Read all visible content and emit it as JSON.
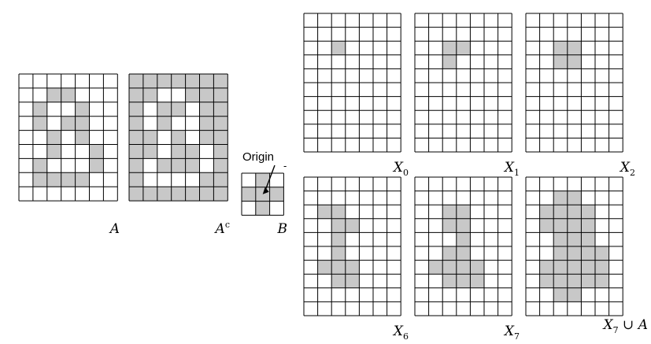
{
  "colors": {
    "fill": "#c8c8c8",
    "line": "#000000",
    "background": "#ffffff"
  },
  "grids": [
    {
      "id": "A",
      "label": {
        "main": "A",
        "sub": "",
        "sup": "",
        "rest": ""
      },
      "rows": [
        "0000000",
        "0011000",
        "0100100",
        "0101100",
        "0010100",
        "0010010",
        "0100010",
        "0111100",
        "0000000"
      ]
    },
    {
      "id": "Ac",
      "label": {
        "main": "A",
        "sub": "",
        "sup": "c",
        "rest": ""
      },
      "rows": [
        "1111111",
        "1100111",
        "1011011",
        "1010011",
        "1101011",
        "1101101",
        "1011101",
        "1000011",
        "1111111"
      ]
    },
    {
      "id": "X0",
      "label": {
        "main": "X",
        "sub": "0",
        "sup": "",
        "rest": ""
      },
      "rows": [
        "0000000",
        "0000000",
        "0010000",
        "0000000",
        "0000000",
        "0000000",
        "0000000",
        "0000000",
        "0000000",
        "0000000"
      ]
    },
    {
      "id": "X1",
      "label": {
        "main": "X",
        "sub": "1",
        "sup": "",
        "rest": ""
      },
      "rows": [
        "0000000",
        "0000000",
        "0011000",
        "0010000",
        "0000000",
        "0000000",
        "0000000",
        "0000000",
        "0000000",
        "0000000"
      ]
    },
    {
      "id": "X2",
      "label": {
        "main": "X",
        "sub": "2",
        "sup": "",
        "rest": ""
      },
      "rows": [
        "0000000",
        "0000000",
        "0011000",
        "0011000",
        "0000000",
        "0000000",
        "0000000",
        "0000000",
        "0000000",
        "0000000"
      ]
    },
    {
      "id": "X6",
      "label": {
        "main": "X",
        "sub": "6",
        "sup": "",
        "rest": ""
      },
      "rows": [
        "0000000",
        "0000000",
        "0110000",
        "0011000",
        "0010000",
        "0010000",
        "0111000",
        "0011000",
        "0000000",
        "0000000"
      ]
    },
    {
      "id": "X7",
      "label": {
        "main": "X",
        "sub": "7",
        "sup": "",
        "rest": ""
      },
      "rows": [
        "0000000",
        "0000000",
        "0011000",
        "0011000",
        "0001000",
        "0011000",
        "0111100",
        "0011100",
        "0000000",
        "0000000"
      ]
    },
    {
      "id": "X7uA",
      "label": {
        "main": "X",
        "sub": "7",
        "sup": "",
        "rest": " ∪ A"
      },
      "rows": [
        "0000000",
        "0011000",
        "0111100",
        "0111100",
        "0011100",
        "0011110",
        "0111110",
        "0111110",
        "0011000",
        "0000000"
      ]
    }
  ],
  "se": {
    "label": {
      "main": "B",
      "sub": "",
      "sup": "",
      "rest": ""
    },
    "rows": [
      "010",
      "111",
      "010"
    ],
    "origin_text": "Origin",
    "origin_mark": "-"
  }
}
